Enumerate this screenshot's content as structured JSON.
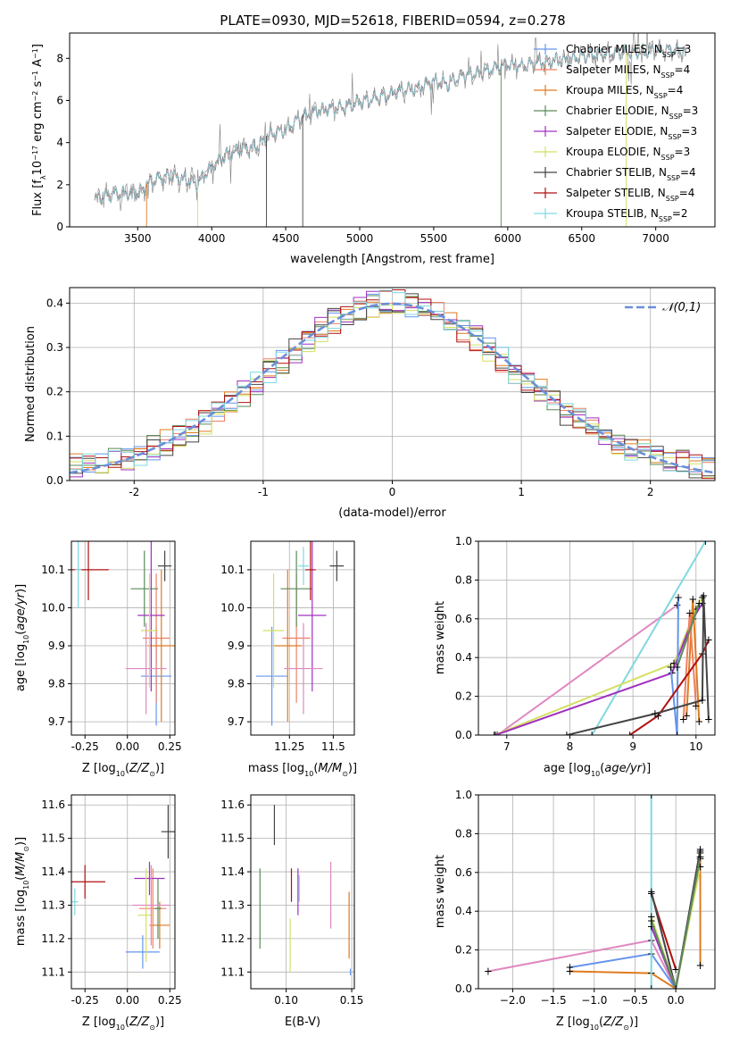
{
  "title": "PLATE=0930, MJD=52618, FIBERID=0594, z=0.278",
  "colors": {
    "Chabrier MILES": "#6495ed",
    "Salpeter MILES": "#ef8066",
    "Kroupa MILES": "#e07b20",
    "Chabrier ELODIE": "#5a8a5a",
    "Salpeter ELODIE": "#a030c0",
    "Kroupa ELODIE": "#d4e060",
    "Chabrier STELIB": "#444444",
    "Salpeter STELIB": "#b01010",
    "Kroupa STELIB": "#80d8e0",
    "data": "#808080",
    "gauss": "#6a8fd8",
    "zband": "#e088c0"
  },
  "chart_data": [
    {
      "type": "line",
      "panel": "spectrum",
      "xlabel": "wavelength [Angstrom, rest frame]",
      "ylabel": "Flux [f_λ 10^-17 erg cm^-2 s^-1 A^-1]",
      "xlim": [
        3040,
        7400
      ],
      "ylim": [
        0,
        9.2
      ],
      "xticks": [
        3500,
        4000,
        4500,
        5000,
        5500,
        6000,
        6500,
        7000
      ],
      "yticks": [
        0,
        2,
        4,
        6,
        8
      ],
      "legend_position": "top-right",
      "legend": [
        {
          "name": "Chabrier MILES",
          "nssp": "3"
        },
        {
          "name": "Salpeter MILES",
          "nssp": "4"
        },
        {
          "name": "Kroupa MILES",
          "nssp": "4"
        },
        {
          "name": "Chabrier ELODIE",
          "nssp": "3"
        },
        {
          "name": "Salpeter ELODIE",
          "nssp": "3"
        },
        {
          "name": "Kroupa ELODIE",
          "nssp": "3"
        },
        {
          "name": "Chabrier STELIB",
          "nssp": "4"
        },
        {
          "name": "Salpeter STELIB",
          "nssp": "4"
        },
        {
          "name": "Kroupa STELIB",
          "nssp": "2"
        }
      ],
      "continuum_x": [
        3210,
        3300,
        3400,
        3500,
        3600,
        3700,
        3800,
        3900,
        4000,
        4100,
        4200,
        4300,
        4400,
        4500,
        4600,
        4700,
        4800,
        4900,
        5000,
        5100,
        5200,
        5300,
        5400,
        5500,
        5600,
        5700,
        5800,
        5900,
        6000,
        6100,
        6200,
        6300,
        6400,
        6500,
        6600,
        6700,
        6800,
        6900,
        7000,
        7100,
        7210
      ],
      "continuum_y": [
        1.4,
        1.6,
        1.7,
        1.7,
        2.3,
        2.5,
        2.4,
        2.1,
        3.0,
        3.5,
        3.8,
        3.9,
        4.5,
        4.7,
        5.3,
        5.6,
        5.7,
        5.8,
        6.0,
        6.2,
        6.4,
        6.6,
        6.7,
        7.0,
        6.9,
        7.3,
        7.4,
        7.6,
        7.8,
        7.7,
        7.9,
        8.0,
        8.0,
        8.2,
        8.3,
        8.3,
        8.4,
        8.4,
        8.5,
        8.5,
        8.4
      ],
      "data_range": [
        3210,
        7210
      ]
    },
    {
      "type": "histogram",
      "panel": "residuals",
      "xlabel": "(data-model)/error",
      "ylabel": "Normed distribution",
      "xlim": [
        -2.5,
        2.5
      ],
      "ylim": [
        0,
        0.435
      ],
      "xticks": [
        -2,
        -1,
        0,
        1,
        2
      ],
      "yticks": [
        0.0,
        0.1,
        0.2,
        0.3,
        0.4
      ],
      "legend": [
        "𝒩(0,1)"
      ],
      "legend_position": "top-right",
      "bin_width": 0.1
    },
    {
      "type": "scatter",
      "panel": "age-vs-Z",
      "xlabel": "Z [log10(Z/Z⊙)]",
      "ylabel": "age  [log10(age/yr)]",
      "xlim": [
        -0.33,
        0.28
      ],
      "ylim": [
        9.665,
        10.175
      ],
      "xticks": [
        -0.25,
        0.0,
        0.25
      ],
      "yticks": [
        9.7,
        9.8,
        9.9,
        10.0,
        10.1
      ],
      "points": [
        {
          "model": "Chabrier MILES",
          "x": 0.17,
          "xerr": 0.09,
          "y": 9.82,
          "yerr": 0.13
        },
        {
          "model": "Salpeter MILES",
          "x": 0.17,
          "xerr": 0.08,
          "y": 9.92,
          "yerr": 0.17
        },
        {
          "model": "Kroupa MILES",
          "x": 0.2,
          "xerr": 0.08,
          "y": 9.9,
          "yerr": 0.2
        },
        {
          "model": "Chabrier ELODIE",
          "x": 0.1,
          "xerr": 0.08,
          "y": 10.05,
          "yerr": 0.1
        },
        {
          "model": "Salpeter ELODIE",
          "x": 0.14,
          "xerr": 0.08,
          "y": 9.98,
          "yerr": 0.2
        },
        {
          "model": "Kroupa ELODIE",
          "x": 0.13,
          "xerr": 0.05,
          "y": 9.94,
          "yerr": 0.15
        },
        {
          "model": "Chabrier STELIB",
          "x": 0.22,
          "xerr": 0.04,
          "y": 10.11,
          "yerr": 0.04
        },
        {
          "model": "Salpeter STELIB",
          "x": -0.23,
          "xerr": 0.12,
          "y": 10.1,
          "yerr": 0.08
        },
        {
          "model": "Kroupa STELIB",
          "x": -0.29,
          "xerr": 0.02,
          "y": 10.1,
          "yerr": 0.1
        },
        {
          "model": "z-band",
          "x": 0.11,
          "xerr": 0.12,
          "y": 9.84,
          "yerr": 0.12
        }
      ]
    },
    {
      "type": "scatter",
      "panel": "age-vs-mass",
      "xlabel": "mass [log10(M/M⊙)]",
      "xlim": [
        11.03,
        11.62
      ],
      "ylim": [
        9.665,
        10.175
      ],
      "xticks": [
        11.25,
        11.5
      ],
      "yticks": [
        9.7,
        9.8,
        9.9,
        10.0,
        10.1
      ],
      "points": [
        {
          "model": "Chabrier MILES",
          "x": 11.15,
          "xerr": 0.09,
          "y": 9.82,
          "yerr": 0.13
        },
        {
          "model": "Salpeter MILES",
          "x": 11.29,
          "xerr": 0.08,
          "y": 9.92,
          "yerr": 0.17
        },
        {
          "model": "Kroupa MILES",
          "x": 11.24,
          "xerr": 0.08,
          "y": 9.9,
          "yerr": 0.2
        },
        {
          "model": "Chabrier ELODIE",
          "x": 11.29,
          "xerr": 0.09,
          "y": 10.05,
          "yerr": 0.1
        },
        {
          "model": "Salpeter ELODIE",
          "x": 11.38,
          "xerr": 0.08,
          "y": 9.98,
          "yerr": 0.2
        },
        {
          "model": "Kroupa ELODIE",
          "x": 11.16,
          "xerr": 0.06,
          "y": 9.94,
          "yerr": 0.15
        },
        {
          "model": "Chabrier STELIB",
          "x": 11.52,
          "xerr": 0.04,
          "y": 10.11,
          "yerr": 0.04
        },
        {
          "model": "Salpeter STELIB",
          "x": 11.37,
          "xerr": 0.03,
          "y": 10.1,
          "yerr": 0.08
        },
        {
          "model": "Kroupa STELIB",
          "x": 11.33,
          "xerr": 0.03,
          "y": 10.11,
          "yerr": 0.05
        },
        {
          "model": "z-band",
          "x": 11.33,
          "xerr": 0.11,
          "y": 9.84,
          "yerr": 0.12
        }
      ]
    },
    {
      "type": "line",
      "panel": "mass-weight-vs-age",
      "xlabel": "age  [log10(age/yr)]",
      "ylabel": "mass weight",
      "xlim": [
        6.55,
        10.3
      ],
      "ylim": [
        0,
        1.0
      ],
      "xticks": [
        7,
        8,
        9,
        10
      ],
      "yticks": [
        0.0,
        0.2,
        0.4,
        0.6,
        0.8,
        1.0
      ],
      "series": [
        {
          "model": "z-band",
          "x": [
            6.85,
            9.7
          ],
          "y": [
            0.0,
            0.67
          ]
        },
        {
          "model": "Kroupa STELIB",
          "x": [
            8.35,
            10.15
          ],
          "y": [
            0.0,
            1.0
          ]
        },
        {
          "model": "Kroupa ELODIE",
          "x": [
            6.8,
            9.65,
            10.0,
            10.1
          ],
          "y": [
            0.0,
            0.37,
            0.65,
            0.71
          ]
        },
        {
          "model": "Salpeter ELODIE",
          "x": [
            6.82,
            9.62,
            9.95,
            10.1
          ],
          "y": [
            0.0,
            0.32,
            0.6,
            0.68
          ]
        },
        {
          "model": "Chabrier MILES",
          "x": [
            9.6,
            9.7,
            9.72
          ],
          "y": [
            0.35,
            0.0,
            0.71
          ]
        },
        {
          "model": "Kroupa MILES",
          "x": [
            9.85,
            9.95,
            10.05
          ],
          "y": [
            0.1,
            0.7,
            0.07
          ]
        },
        {
          "model": "Salpeter MILES",
          "x": [
            9.8,
            9.9,
            10.0
          ],
          "y": [
            0.08,
            0.63,
            0.15
          ]
        },
        {
          "model": "Chabrier ELODIE",
          "x": [
            9.7,
            10.05
          ],
          "y": [
            0.35,
            0.68
          ]
        },
        {
          "model": "Salpeter STELIB",
          "x": [
            8.95,
            9.4,
            10.1,
            10.2
          ],
          "y": [
            0.0,
            0.1,
            0.42,
            0.49
          ]
        },
        {
          "model": "Chabrier STELIB",
          "x": [
            7.95,
            9.35,
            10.1,
            10.12,
            10.2
          ],
          "y": [
            0.0,
            0.11,
            0.18,
            0.72,
            0.08
          ]
        }
      ]
    },
    {
      "type": "scatter",
      "panel": "mass-vs-Z",
      "xlabel": "Z [log10(Z/Z⊙)]",
      "ylabel": "mass [log10(M/M⊙)]",
      "xlim": [
        -0.33,
        0.28
      ],
      "ylim": [
        11.05,
        11.63
      ],
      "xticks": [
        -0.25,
        0.0,
        0.25
      ],
      "yticks": [
        11.1,
        11.2,
        11.3,
        11.4,
        11.5,
        11.6
      ],
      "points": [
        {
          "model": "Chabrier MILES",
          "x": 0.09,
          "xerr": 0.1,
          "y": 11.16,
          "yerr": 0.05
        },
        {
          "model": "Salpeter MILES",
          "x": 0.15,
          "xerr": 0.08,
          "y": 11.29,
          "yerr": 0.12
        },
        {
          "model": "Kroupa MILES",
          "x": 0.19,
          "xerr": 0.06,
          "y": 11.24,
          "yerr": 0.07
        },
        {
          "model": "Chabrier ELODIE",
          "x": 0.18,
          "xerr": 0.02,
          "y": 11.29,
          "yerr": 0.09
        },
        {
          "model": "Salpeter ELODIE",
          "x": 0.13,
          "xerr": 0.09,
          "y": 11.38,
          "yerr": 0.05
        },
        {
          "model": "Kroupa ELODIE",
          "x": 0.11,
          "xerr": 0.05,
          "y": 11.27,
          "yerr": 0.14
        },
        {
          "model": "Chabrier STELIB",
          "x": 0.24,
          "xerr": 0.04,
          "y": 11.52,
          "yerr": 0.08
        },
        {
          "model": "Salpeter STELIB",
          "x": -0.25,
          "xerr": 0.12,
          "y": 11.37,
          "yerr": 0.05
        },
        {
          "model": "Kroupa STELIB",
          "x": -0.31,
          "xerr": 0.02,
          "y": 11.31,
          "yerr": 0.04
        },
        {
          "model": "z-band",
          "x": 0.14,
          "xerr": 0.11,
          "y": 11.3,
          "yerr": 0.12
        }
      ]
    },
    {
      "type": "scatter",
      "panel": "mass-vs-EBV",
      "xlabel": "E(B-V)",
      "xlim": [
        0.073,
        0.152
      ],
      "ylim": [
        11.05,
        11.63
      ],
      "xticks": [
        0.1,
        0.15
      ],
      "yticks": [
        11.1,
        11.2,
        11.3,
        11.4,
        11.5,
        11.6
      ],
      "points": [
        {
          "model": "Chabrier MILES",
          "x": 0.149,
          "y": 11.1,
          "yerr": 0.01
        },
        {
          "model": "Kroupa MILES",
          "x": 0.148,
          "y": 11.24,
          "yerr": 0.1
        },
        {
          "model": "Chabrier ELODIE",
          "x": 0.08,
          "y": 11.29,
          "yerr": 0.12
        },
        {
          "model": "Salpeter ELODIE",
          "x": 0.109,
          "y": 11.34,
          "yerr": 0.07
        },
        {
          "model": "Kroupa ELODIE",
          "x": 0.103,
          "y": 11.18,
          "yerr": 0.08
        },
        {
          "model": "Chabrier STELIB",
          "x": 0.091,
          "y": 11.54,
          "yerr": 0.06
        },
        {
          "model": "Salpeter STELIB",
          "x": 0.104,
          "y": 11.36,
          "yerr": 0.05
        },
        {
          "model": "Kroupa STELIB",
          "x": 0.11,
          "y": 11.35,
          "yerr": 0.04
        },
        {
          "model": "z-band",
          "x": 0.134,
          "y": 11.33,
          "yerr": 0.1
        }
      ]
    },
    {
      "type": "line",
      "panel": "mass-weight-vs-Z",
      "xlabel": "Z [log10(Z/Z⊙)]",
      "ylabel": "mass weight",
      "xlim": [
        -2.42,
        0.48
      ],
      "ylim": [
        0,
        1.0
      ],
      "xticks": [
        -2.0,
        -1.5,
        -1.0,
        -0.5,
        0.0
      ],
      "yticks": [
        0.0,
        0.2,
        0.4,
        0.6,
        0.8,
        1.0
      ],
      "series": [
        {
          "model": "z-band",
          "x": [
            -2.3,
            -0.3,
            0.0,
            0.3
          ],
          "y": [
            0.09,
            0.25,
            0.0,
            0.67
          ]
        },
        {
          "model": "Chabrier MILES",
          "x": [
            -1.3,
            -0.3,
            0.0,
            0.3
          ],
          "y": [
            0.11,
            0.18,
            0.0,
            0.71
          ]
        },
        {
          "model": "Kroupa MILES",
          "x": [
            -1.3,
            -0.3,
            0.0,
            0.3,
            0.3
          ],
          "y": [
            0.09,
            0.08,
            0.0,
            0.7,
            0.12
          ]
        },
        {
          "model": "Kroupa STELIB",
          "x": [
            -0.3,
            -0.3
          ],
          "y": [
            0.0,
            1.0
          ]
        },
        {
          "model": "Salpeter STELIB",
          "x": [
            -0.3,
            0.0
          ],
          "y": [
            0.49,
            0.1
          ]
        },
        {
          "model": "Chabrier STELIB",
          "x": [
            -0.3,
            0.0,
            0.3
          ],
          "y": [
            0.5,
            0.0,
            0.72
          ]
        },
        {
          "model": "Kroupa ELODIE",
          "x": [
            -0.3,
            0.0,
            0.3
          ],
          "y": [
            0.37,
            0.0,
            0.63
          ]
        },
        {
          "model": "Salpeter ELODIE",
          "x": [
            -0.3,
            0.0,
            0.3
          ],
          "y": [
            0.32,
            0.0,
            0.68
          ]
        },
        {
          "model": "Chabrier ELODIE",
          "x": [
            -0.3,
            0.0,
            0.3
          ],
          "y": [
            0.35,
            0.0,
            0.68
          ]
        }
      ]
    }
  ]
}
